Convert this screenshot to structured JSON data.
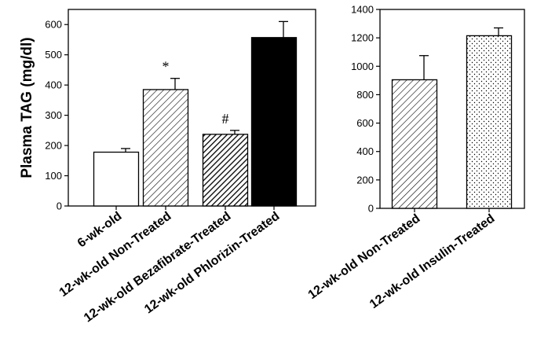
{
  "chart_data": [
    {
      "type": "bar",
      "title": "",
      "xlabel": "",
      "ylabel": "Plasma TAG (mg/dl)",
      "ylim": [
        0,
        650
      ],
      "yticks": [
        0,
        100,
        200,
        300,
        400,
        500,
        600
      ],
      "grid": false,
      "categories": [
        "6-wk-old",
        "12-wk-old Non-Treated",
        "12-wk-old Bezafibrate-Treated",
        "12-wk-old Phlorizin-Treated"
      ],
      "series": [
        {
          "values": [
            178,
            385,
            237,
            557
          ],
          "errors": [
            12,
            37,
            13,
            53
          ]
        }
      ],
      "annotations": [
        "",
        "*",
        "#",
        ""
      ],
      "fills": [
        "white",
        "sparse-diagonal",
        "dense-diagonal",
        "solid-black"
      ]
    },
    {
      "type": "bar",
      "title": "",
      "xlabel": "",
      "ylabel": "",
      "ylim": [
        0,
        1400
      ],
      "yticks": [
        0,
        200,
        400,
        600,
        800,
        1000,
        1200,
        1400
      ],
      "grid": false,
      "categories": [
        "12-wk-old Non-Treated",
        "12-wk-old Insulin-Treated"
      ],
      "series": [
        {
          "values": [
            905,
            1215
          ],
          "errors": [
            170,
            55
          ]
        }
      ],
      "annotations": [
        "",
        ""
      ],
      "fills": [
        "sparse-diagonal",
        "dotted"
      ]
    }
  ]
}
